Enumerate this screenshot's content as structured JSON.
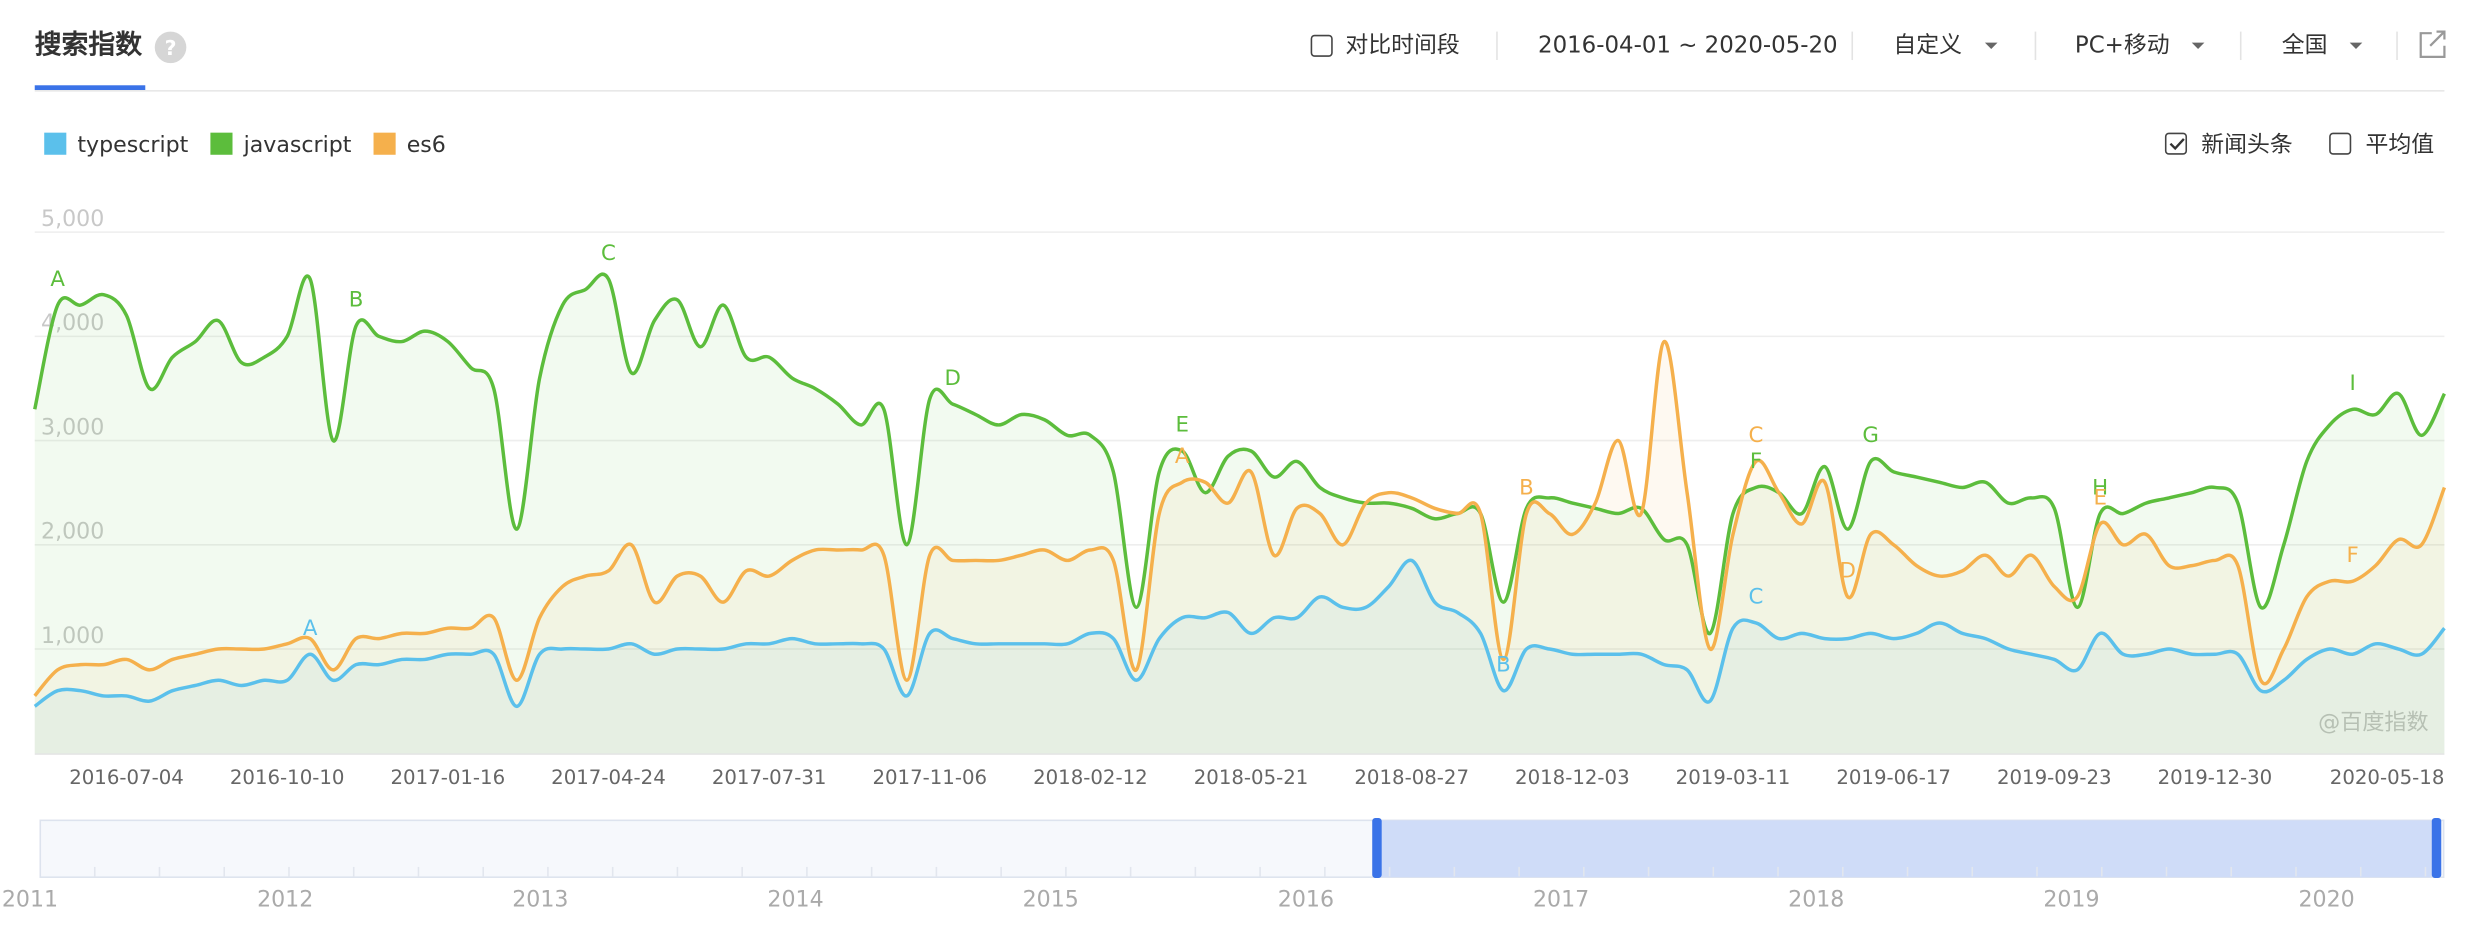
{
  "header": {
    "title": "搜索指数",
    "help": "?",
    "compare": "对比时间段",
    "date_range": "2016-04-01 ~ 2020-05-20",
    "period": "自定义",
    "device": "PC+移动",
    "region": "全国"
  },
  "options": {
    "news": {
      "label": "新闻头条",
      "checked": true
    },
    "average": {
      "label": "平均值",
      "checked": false
    }
  },
  "chart_data": {
    "type": "line",
    "watermark": "@百度指数",
    "grid": true,
    "ylim": [
      0,
      5000
    ],
    "yticks": [
      {
        "value": 1000,
        "label": "1,000"
      },
      {
        "value": 2000,
        "label": "2,000"
      },
      {
        "value": 3000,
        "label": "3,000"
      },
      {
        "value": 4000,
        "label": "4,000"
      },
      {
        "value": 5000,
        "label": "5,000"
      }
    ],
    "categories": [
      null,
      null,
      null,
      null,
      "2016-07-04",
      null,
      null,
      null,
      null,
      null,
      null,
      "2016-10-10",
      null,
      null,
      null,
      null,
      null,
      null,
      "2017-01-16",
      null,
      null,
      null,
      null,
      null,
      null,
      "2017-04-24",
      null,
      null,
      null,
      null,
      null,
      null,
      "2017-07-31",
      null,
      null,
      null,
      null,
      null,
      null,
      "2017-11-06",
      null,
      null,
      null,
      null,
      null,
      null,
      "2018-02-12",
      null,
      null,
      null,
      null,
      null,
      null,
      "2018-05-21",
      null,
      null,
      null,
      null,
      null,
      null,
      "2018-08-27",
      null,
      null,
      null,
      null,
      null,
      null,
      "2018-12-03",
      null,
      null,
      null,
      null,
      null,
      null,
      "2019-03-11",
      null,
      null,
      null,
      null,
      null,
      null,
      "2019-06-17",
      null,
      null,
      null,
      null,
      null,
      null,
      "2019-09-23",
      null,
      null,
      null,
      null,
      null,
      null,
      "2019-12-30",
      null,
      null,
      null,
      null,
      null,
      null,
      null,
      null,
      null,
      "2020-05-18"
    ],
    "series": [
      {
        "name": "typescript",
        "color": "#5bc0eb",
        "values": [
          450,
          600,
          600,
          550,
          550,
          500,
          600,
          650,
          700,
          650,
          700,
          700,
          950,
          700,
          850,
          850,
          900,
          900,
          950,
          950,
          950,
          450,
          950,
          1000,
          1000,
          1000,
          1050,
          950,
          1000,
          1000,
          1000,
          1050,
          1050,
          1100,
          1050,
          1050,
          1050,
          1000,
          550,
          1150,
          1100,
          1050,
          1050,
          1050,
          1050,
          1050,
          1150,
          1100,
          700,
          1100,
          1300,
          1300,
          1350,
          1150,
          1300,
          1300,
          1500,
          1400,
          1400,
          1600,
          1850,
          1450,
          1350,
          1150,
          600,
          1000,
          1000,
          950,
          950,
          950,
          950,
          850,
          800,
          500,
          1200,
          1250,
          1100,
          1150,
          1100,
          1100,
          1150,
          1100,
          1150,
          1250,
          1150,
          1100,
          1000,
          950,
          900,
          800,
          1150,
          950,
          950,
          1000,
          950,
          950,
          950,
          600,
          700,
          900,
          1000,
          950,
          1050,
          1000,
          950,
          1200
        ],
        "annotations": [
          null,
          null,
          null,
          null,
          null,
          null,
          null,
          null,
          null,
          null,
          null,
          null,
          "A",
          null,
          null,
          null,
          null,
          null,
          null,
          null,
          null,
          null,
          null,
          null,
          null,
          null,
          null,
          null,
          null,
          null,
          null,
          null,
          null,
          null,
          null,
          null,
          null,
          null,
          null,
          null,
          null,
          null,
          null,
          null,
          null,
          null,
          null,
          null,
          null,
          null,
          null,
          null,
          null,
          null,
          null,
          null,
          null,
          null,
          null,
          null,
          null,
          null,
          null,
          null,
          "B",
          null,
          null,
          null,
          null,
          null,
          null,
          null,
          null,
          null,
          null,
          "C",
          null,
          null,
          null,
          null,
          null,
          null,
          null,
          null,
          null,
          null,
          null,
          null,
          null,
          null,
          null,
          null,
          null,
          null,
          null,
          null,
          null,
          null,
          null,
          null,
          null,
          null,
          null,
          null,
          null,
          null
        ]
      },
      {
        "name": "javascript",
        "color": "#5cbd3c",
        "values": [
          3300,
          4300,
          4300,
          4400,
          4200,
          3500,
          3800,
          3950,
          4150,
          3750,
          3800,
          4000,
          4550,
          3000,
          4100,
          4000,
          3950,
          4050,
          3950,
          3700,
          3500,
          2150,
          3600,
          4300,
          4450,
          4550,
          3650,
          4150,
          4350,
          3900,
          4300,
          3800,
          3800,
          3600,
          3500,
          3350,
          3150,
          3300,
          2000,
          3400,
          3350,
          3250,
          3150,
          3250,
          3200,
          3050,
          3050,
          2700,
          1400,
          2700,
          2900,
          2500,
          2850,
          2900,
          2650,
          2800,
          2550,
          2450,
          2400,
          2400,
          2350,
          2250,
          2300,
          2300,
          1450,
          2350,
          2450,
          2400,
          2350,
          2300,
          2350,
          2050,
          2000,
          1150,
          2300,
          2550,
          2500,
          2300,
          2750,
          2150,
          2800,
          2700,
          2650,
          2600,
          2550,
          2600,
          2400,
          2450,
          2350,
          1400,
          2300,
          2300,
          2400,
          2450,
          2500,
          2550,
          2400,
          1400,
          2000,
          2800,
          3150,
          3300,
          3250,
          3450,
          3050,
          3450
        ],
        "annotations": [
          null,
          "A",
          null,
          null,
          null,
          null,
          null,
          null,
          null,
          null,
          null,
          null,
          null,
          null,
          "B",
          null,
          null,
          null,
          null,
          null,
          null,
          null,
          null,
          null,
          null,
          "C",
          null,
          null,
          null,
          null,
          null,
          null,
          null,
          null,
          null,
          null,
          null,
          null,
          null,
          null,
          "D",
          null,
          null,
          null,
          null,
          null,
          null,
          null,
          null,
          null,
          "E",
          null,
          null,
          null,
          null,
          null,
          null,
          null,
          null,
          null,
          null,
          null,
          null,
          null,
          null,
          null,
          null,
          null,
          null,
          null,
          null,
          null,
          null,
          null,
          null,
          "F",
          null,
          null,
          null,
          null,
          "G",
          null,
          null,
          null,
          null,
          null,
          null,
          null,
          null,
          null,
          "H",
          null,
          null,
          null,
          null,
          null,
          null,
          null,
          null,
          null,
          null,
          "I",
          null,
          null,
          null,
          null
        ]
      },
      {
        "name": "es6",
        "color": "#f5b04c",
        "values": [
          550,
          800,
          850,
          850,
          900,
          800,
          900,
          950,
          1000,
          1000,
          1000,
          1050,
          1100,
          800,
          1100,
          1100,
          1150,
          1150,
          1200,
          1200,
          1300,
          700,
          1300,
          1600,
          1700,
          1750,
          2000,
          1450,
          1700,
          1700,
          1450,
          1750,
          1700,
          1850,
          1950,
          1950,
          1950,
          1900,
          700,
          1900,
          1850,
          1850,
          1850,
          1900,
          1950,
          1850,
          1950,
          1850,
          800,
          2300,
          2600,
          2600,
          2400,
          2700,
          1900,
          2350,
          2300,
          2000,
          2400,
          2500,
          2450,
          2350,
          2300,
          2300,
          900,
          2300,
          2300,
          2100,
          2400,
          3000,
          2300,
          3950,
          2500,
          1000,
          2100,
          2800,
          2500,
          2200,
          2600,
          1500,
          2100,
          2000,
          1800,
          1700,
          1750,
          1900,
          1700,
          1900,
          1600,
          1500,
          2200,
          2000,
          2100,
          1800,
          1800,
          1850,
          1800,
          700,
          1000,
          1500,
          1650,
          1650,
          1800,
          2050,
          2000,
          2550
        ],
        "annotations": [
          null,
          null,
          null,
          null,
          null,
          null,
          null,
          null,
          null,
          null,
          null,
          null,
          null,
          null,
          null,
          null,
          null,
          null,
          null,
          null,
          null,
          null,
          null,
          null,
          null,
          null,
          null,
          null,
          null,
          null,
          null,
          null,
          null,
          null,
          null,
          null,
          null,
          null,
          null,
          null,
          null,
          null,
          null,
          null,
          null,
          null,
          null,
          null,
          null,
          null,
          "A",
          null,
          null,
          null,
          null,
          null,
          null,
          null,
          null,
          null,
          null,
          null,
          null,
          null,
          null,
          "B",
          null,
          null,
          null,
          null,
          null,
          null,
          null,
          null,
          null,
          "C",
          null,
          null,
          null,
          "D",
          null,
          null,
          null,
          null,
          null,
          null,
          null,
          null,
          null,
          null,
          "E",
          null,
          null,
          null,
          null,
          null,
          null,
          null,
          null,
          null,
          null,
          "F",
          null,
          null,
          null,
          null
        ]
      }
    ]
  },
  "range_selector": {
    "years": [
      2011,
      2012,
      2013,
      2014,
      2015,
      2016,
      2017,
      2018,
      2019,
      2020
    ]
  }
}
